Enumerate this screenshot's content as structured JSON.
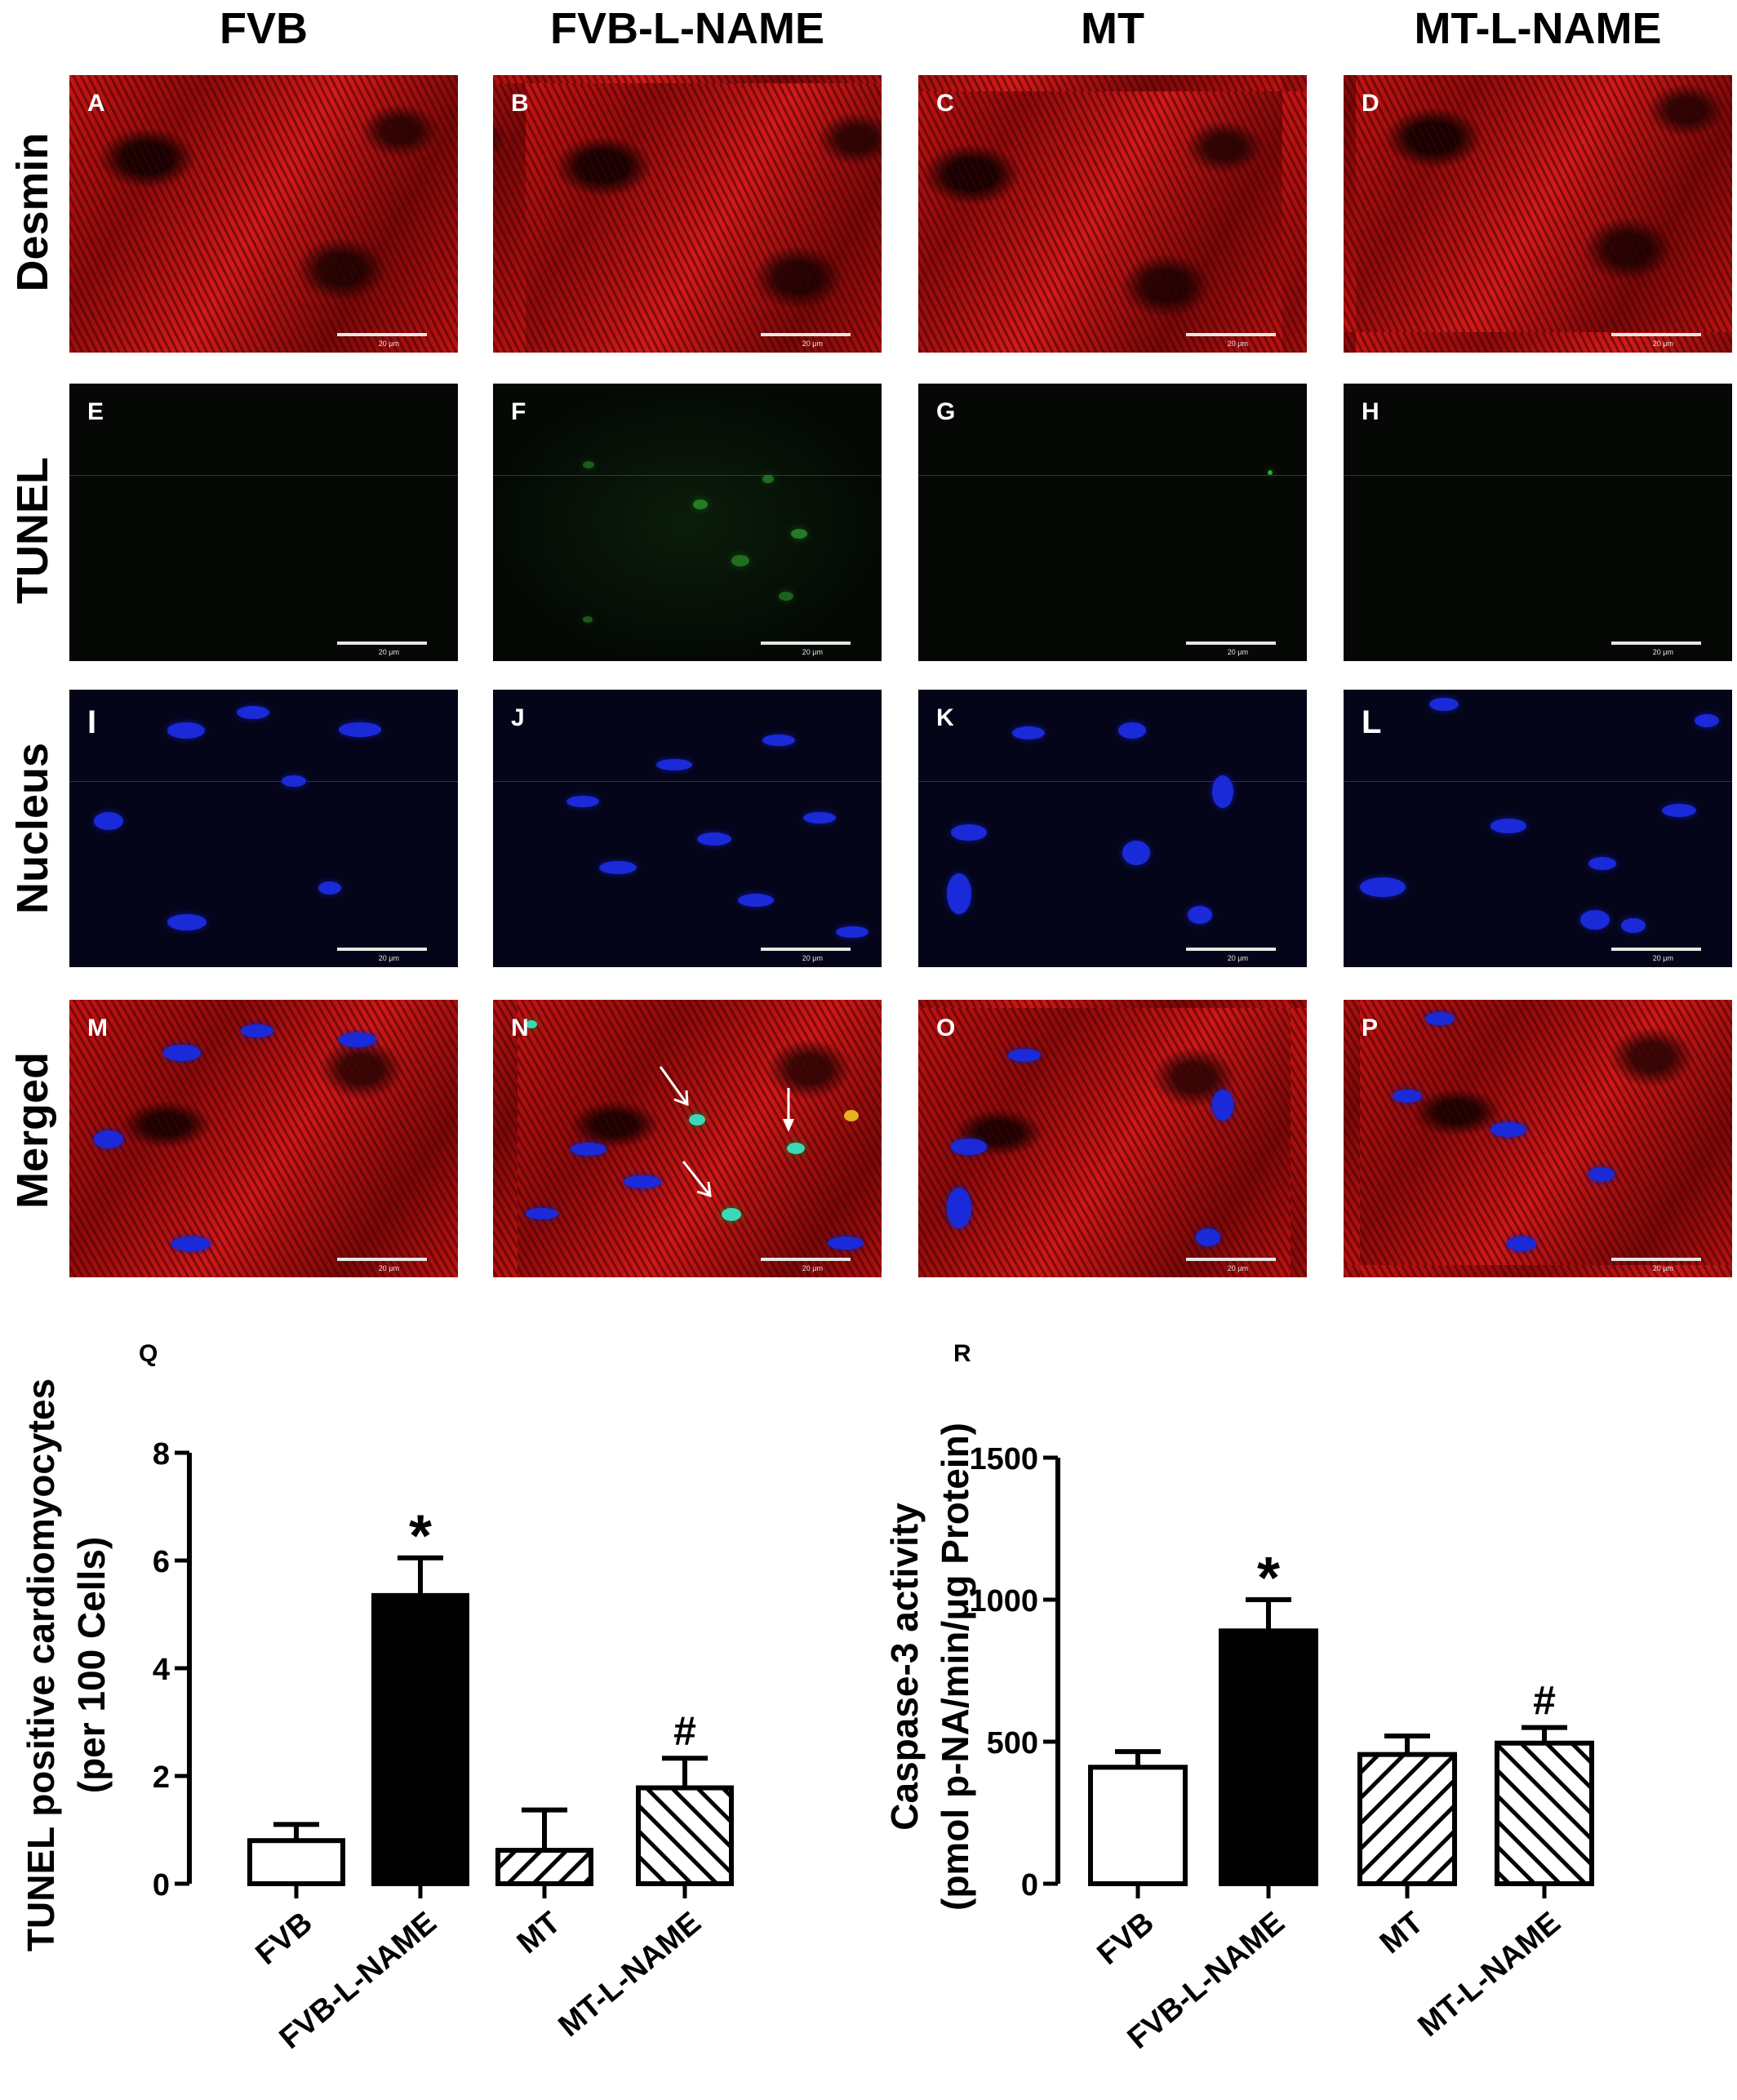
{
  "columns": [
    "FVB",
    "FVB-L-NAME",
    "MT",
    "MT-L-NAME"
  ],
  "rows": [
    "Desmin",
    "TUNEL",
    "Nucleus",
    "Merged"
  ],
  "panel_letters": [
    [
      "A",
      "B",
      "C",
      "D"
    ],
    [
      "E",
      "F",
      "G",
      "H"
    ],
    [
      "I",
      "J",
      "K",
      "L"
    ],
    [
      "M",
      "N",
      "O",
      "P"
    ]
  ],
  "scale_bar_label": "20 μm",
  "chart_data": [
    {
      "panel_label": "Q",
      "type": "bar",
      "categories": [
        "FVB",
        "FVB-L-NAME",
        "MT",
        "MT-L-NAME"
      ],
      "values": [
        0.8,
        5.35,
        0.62,
        1.78
      ],
      "errors": [
        0.3,
        0.7,
        0.75,
        0.55
      ],
      "annotations": [
        "",
        "*",
        "",
        "#"
      ],
      "fills": [
        "white",
        "black",
        "hatch-forward",
        "hatch-back"
      ],
      "ylabel": [
        "TUNEL positive cardiomyocytes",
        "(per 100 Cells)"
      ],
      "ylim": [
        0,
        8
      ],
      "yticks": [
        0,
        2,
        4,
        6,
        8
      ]
    },
    {
      "panel_label": "R",
      "type": "bar",
      "categories": [
        "FVB",
        "FVB-L-NAME",
        "MT",
        "MT-L-NAME"
      ],
      "values": [
        410,
        890,
        455,
        495
      ],
      "errors": [
        55,
        110,
        65,
        55
      ],
      "annotations": [
        "",
        "*",
        "",
        "#"
      ],
      "fills": [
        "white",
        "black",
        "hatch-forward",
        "hatch-back"
      ],
      "ylabel": [
        "Caspase-3 activity",
        "(pmol p-NA/min/μg Protein)"
      ],
      "ylim": [
        0,
        1500
      ],
      "yticks": [
        0,
        500,
        1000,
        1500
      ]
    }
  ]
}
